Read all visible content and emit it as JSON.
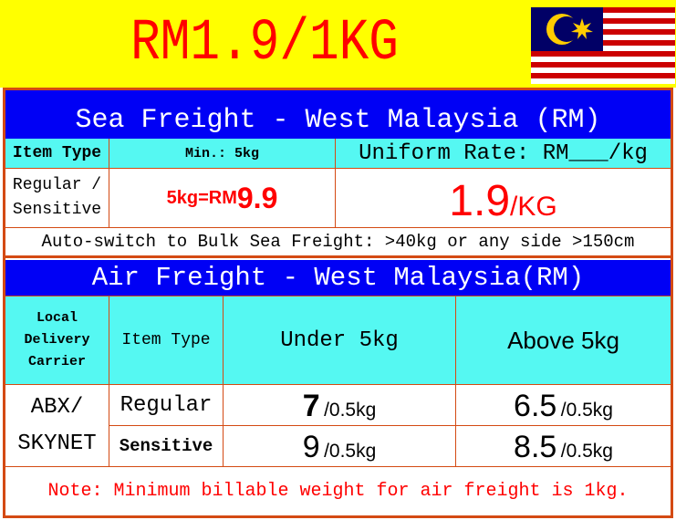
{
  "banner": {
    "price": "RM1.9/1KG",
    "flag": "malaysia-flag"
  },
  "sea": {
    "title": "Sea Freight - West Malaysia (RM)",
    "col_item_type": "Item Type",
    "col_min": "Min.: 5kg",
    "col_rate": "Uniform Rate: RM___/kg",
    "row_type": "Regular / Sensitive",
    "min_prefix": "5kg=RM",
    "min_value": "9.9",
    "rate_value": "1.9",
    "rate_unit": "/KG",
    "note": "Auto-switch to Bulk Sea Freight: >40kg or any side >150cm"
  },
  "air": {
    "title": "Air Freight - West Malaysia(RM)",
    "col_carrier": "Local Delivery Carrier",
    "col_item_type": "Item Type",
    "col_under": "Under 5kg",
    "col_above": "Above 5kg",
    "carrier": "ABX/ SKYNET",
    "rows": [
      {
        "type": "Regular",
        "under": "7",
        "above": "6.5",
        "unit": "/0.5kg"
      },
      {
        "type": "Sensitive",
        "under": "9",
        "above": "8.5",
        "unit": "/0.5kg"
      }
    ],
    "note": "Note: Minimum billable weight for air freight is 1kg."
  },
  "colors": {
    "banner": "#ffff00",
    "header": "#0000f5",
    "subheader": "#55f8f2",
    "border": "#d44a13",
    "accent": "#ff0000"
  }
}
